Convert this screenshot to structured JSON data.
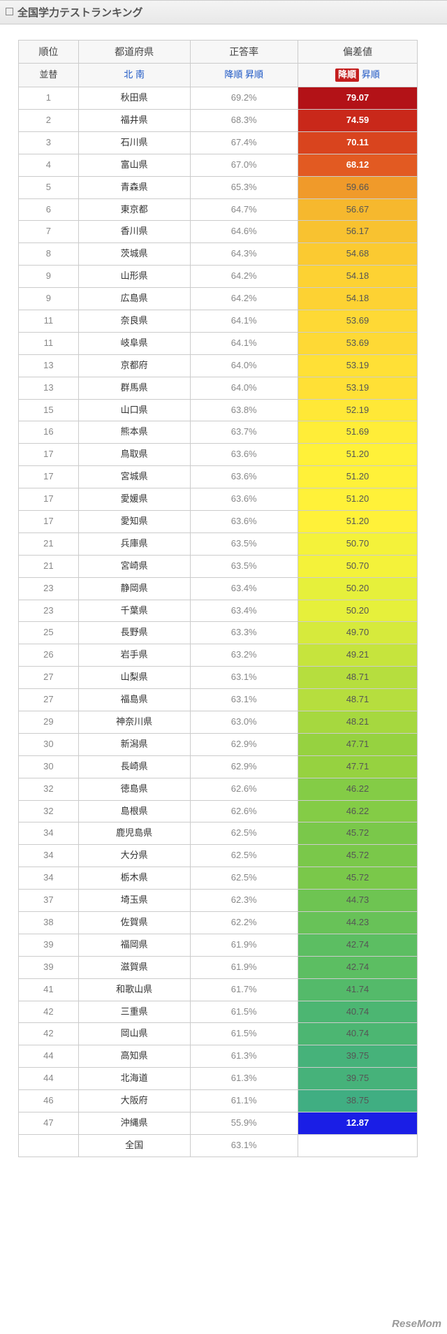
{
  "title": "全国学力テストランキング",
  "watermark": "ReseMom",
  "columns": {
    "rank": {
      "header": "順位",
      "subheader": "並替"
    },
    "pref": {
      "header": "都道府県",
      "sub_north": "北",
      "sub_south": "南"
    },
    "rate": {
      "header": "正答率",
      "sub_desc": "降順",
      "sub_asc": "昇順"
    },
    "dev": {
      "header": "偏差値",
      "sub_desc": "降順",
      "sub_asc": "昇順",
      "active": "desc"
    }
  },
  "rows": [
    {
      "rank": "1",
      "pref": "秋田県",
      "rate": "69.2%",
      "dev": "79.07",
      "bg": "#b31217",
      "fg": "white"
    },
    {
      "rank": "2",
      "pref": "福井県",
      "rate": "68.3%",
      "dev": "74.59",
      "bg": "#c9281a",
      "fg": "white"
    },
    {
      "rank": "3",
      "pref": "石川県",
      "rate": "67.4%",
      "dev": "70.11",
      "bg": "#d9441e",
      "fg": "white"
    },
    {
      "rank": "4",
      "pref": "富山県",
      "rate": "67.0%",
      "dev": "68.12",
      "bg": "#e25a22",
      "fg": "white"
    },
    {
      "rank": "5",
      "pref": "青森県",
      "rate": "65.3%",
      "dev": "59.66",
      "bg": "#f09a2a",
      "fg": "dark"
    },
    {
      "rank": "6",
      "pref": "東京都",
      "rate": "64.7%",
      "dev": "56.67",
      "bg": "#f6b82e",
      "fg": "dark"
    },
    {
      "rank": "7",
      "pref": "香川県",
      "rate": "64.6%",
      "dev": "56.17",
      "bg": "#f8c230",
      "fg": "dark"
    },
    {
      "rank": "8",
      "pref": "茨城県",
      "rate": "64.3%",
      "dev": "54.68",
      "bg": "#fbca31",
      "fg": "dark"
    },
    {
      "rank": "9",
      "pref": "山形県",
      "rate": "64.2%",
      "dev": "54.18",
      "bg": "#fdd233",
      "fg": "dark"
    },
    {
      "rank": "9",
      "pref": "広島県",
      "rate": "64.2%",
      "dev": "54.18",
      "bg": "#fdd233",
      "fg": "dark"
    },
    {
      "rank": "11",
      "pref": "奈良県",
      "rate": "64.1%",
      "dev": "53.69",
      "bg": "#fed935",
      "fg": "dark"
    },
    {
      "rank": "11",
      "pref": "岐阜県",
      "rate": "64.1%",
      "dev": "53.69",
      "bg": "#fed935",
      "fg": "dark"
    },
    {
      "rank": "13",
      "pref": "京都府",
      "rate": "64.0%",
      "dev": "53.19",
      "bg": "#ffe036",
      "fg": "dark"
    },
    {
      "rank": "13",
      "pref": "群馬県",
      "rate": "64.0%",
      "dev": "53.19",
      "bg": "#ffe036",
      "fg": "dark"
    },
    {
      "rank": "15",
      "pref": "山口県",
      "rate": "63.8%",
      "dev": "52.19",
      "bg": "#ffe837",
      "fg": "dark"
    },
    {
      "rank": "16",
      "pref": "熊本県",
      "rate": "63.7%",
      "dev": "51.69",
      "bg": "#ffed38",
      "fg": "dark"
    },
    {
      "rank": "17",
      "pref": "鳥取県",
      "rate": "63.6%",
      "dev": "51.20",
      "bg": "#fff139",
      "fg": "dark"
    },
    {
      "rank": "17",
      "pref": "宮城県",
      "rate": "63.6%",
      "dev": "51.20",
      "bg": "#fff139",
      "fg": "dark"
    },
    {
      "rank": "17",
      "pref": "愛媛県",
      "rate": "63.6%",
      "dev": "51.20",
      "bg": "#fff139",
      "fg": "dark"
    },
    {
      "rank": "17",
      "pref": "愛知県",
      "rate": "63.6%",
      "dev": "51.20",
      "bg": "#fff139",
      "fg": "dark"
    },
    {
      "rank": "21",
      "pref": "兵庫県",
      "rate": "63.5%",
      "dev": "50.70",
      "bg": "#f4f23a",
      "fg": "dark"
    },
    {
      "rank": "21",
      "pref": "宮崎県",
      "rate": "63.5%",
      "dev": "50.70",
      "bg": "#f4f23a",
      "fg": "dark"
    },
    {
      "rank": "23",
      "pref": "静岡県",
      "rate": "63.4%",
      "dev": "50.20",
      "bg": "#e6f03b",
      "fg": "dark"
    },
    {
      "rank": "23",
      "pref": "千葉県",
      "rate": "63.4%",
      "dev": "50.20",
      "bg": "#e6f03b",
      "fg": "dark"
    },
    {
      "rank": "25",
      "pref": "長野県",
      "rate": "63.3%",
      "dev": "49.70",
      "bg": "#d6ea3c",
      "fg": "dark"
    },
    {
      "rank": "26",
      "pref": "岩手県",
      "rate": "63.2%",
      "dev": "49.21",
      "bg": "#c6e43d",
      "fg": "dark"
    },
    {
      "rank": "27",
      "pref": "山梨県",
      "rate": "63.1%",
      "dev": "48.71",
      "bg": "#b6de3e",
      "fg": "dark"
    },
    {
      "rank": "27",
      "pref": "福島県",
      "rate": "63.1%",
      "dev": "48.71",
      "bg": "#b6de3e",
      "fg": "dark"
    },
    {
      "rank": "29",
      "pref": "神奈川県",
      "rate": "63.0%",
      "dev": "48.21",
      "bg": "#a6d83f",
      "fg": "dark"
    },
    {
      "rank": "30",
      "pref": "新潟県",
      "rate": "62.9%",
      "dev": "47.71",
      "bg": "#96d240",
      "fg": "dark"
    },
    {
      "rank": "30",
      "pref": "長崎県",
      "rate": "62.9%",
      "dev": "47.71",
      "bg": "#96d240",
      "fg": "dark"
    },
    {
      "rank": "32",
      "pref": "徳島県",
      "rate": "62.6%",
      "dev": "46.22",
      "bg": "#84cc46",
      "fg": "dark"
    },
    {
      "rank": "32",
      "pref": "島根県",
      "rate": "62.6%",
      "dev": "46.22",
      "bg": "#84cc46",
      "fg": "dark"
    },
    {
      "rank": "34",
      "pref": "鹿児島県",
      "rate": "62.5%",
      "dev": "45.72",
      "bg": "#7ac84a",
      "fg": "dark"
    },
    {
      "rank": "34",
      "pref": "大分県",
      "rate": "62.5%",
      "dev": "45.72",
      "bg": "#7ac84a",
      "fg": "dark"
    },
    {
      "rank": "34",
      "pref": "栃木県",
      "rate": "62.5%",
      "dev": "45.72",
      "bg": "#7ac84a",
      "fg": "dark"
    },
    {
      "rank": "37",
      "pref": "埼玉県",
      "rate": "62.3%",
      "dev": "44.73",
      "bg": "#6ec452",
      "fg": "dark"
    },
    {
      "rank": "38",
      "pref": "佐賀県",
      "rate": "62.2%",
      "dev": "44.23",
      "bg": "#68c258",
      "fg": "dark"
    },
    {
      "rank": "39",
      "pref": "福岡県",
      "rate": "61.9%",
      "dev": "42.74",
      "bg": "#5cbe62",
      "fg": "dark"
    },
    {
      "rank": "39",
      "pref": "滋賀県",
      "rate": "61.9%",
      "dev": "42.74",
      "bg": "#5cbe62",
      "fg": "dark"
    },
    {
      "rank": "41",
      "pref": "和歌山県",
      "rate": "61.7%",
      "dev": "41.74",
      "bg": "#54ba6a",
      "fg": "dark"
    },
    {
      "rank": "42",
      "pref": "三重県",
      "rate": "61.5%",
      "dev": "40.74",
      "bg": "#4cb672",
      "fg": "dark"
    },
    {
      "rank": "42",
      "pref": "岡山県",
      "rate": "61.5%",
      "dev": "40.74",
      "bg": "#4cb672",
      "fg": "dark"
    },
    {
      "rank": "44",
      "pref": "高知県",
      "rate": "61.3%",
      "dev": "39.75",
      "bg": "#46b27a",
      "fg": "dark"
    },
    {
      "rank": "44",
      "pref": "北海道",
      "rate": "61.3%",
      "dev": "39.75",
      "bg": "#46b27a",
      "fg": "dark"
    },
    {
      "rank": "46",
      "pref": "大阪府",
      "rate": "61.1%",
      "dev": "38.75",
      "bg": "#40ae82",
      "fg": "dark"
    },
    {
      "rank": "47",
      "pref": "沖縄県",
      "rate": "55.9%",
      "dev": "12.87",
      "bg": "#1a1ee6",
      "fg": "white"
    }
  ],
  "footer": {
    "rank": "",
    "pref": "全国",
    "rate": "63.1%",
    "dev": ""
  }
}
